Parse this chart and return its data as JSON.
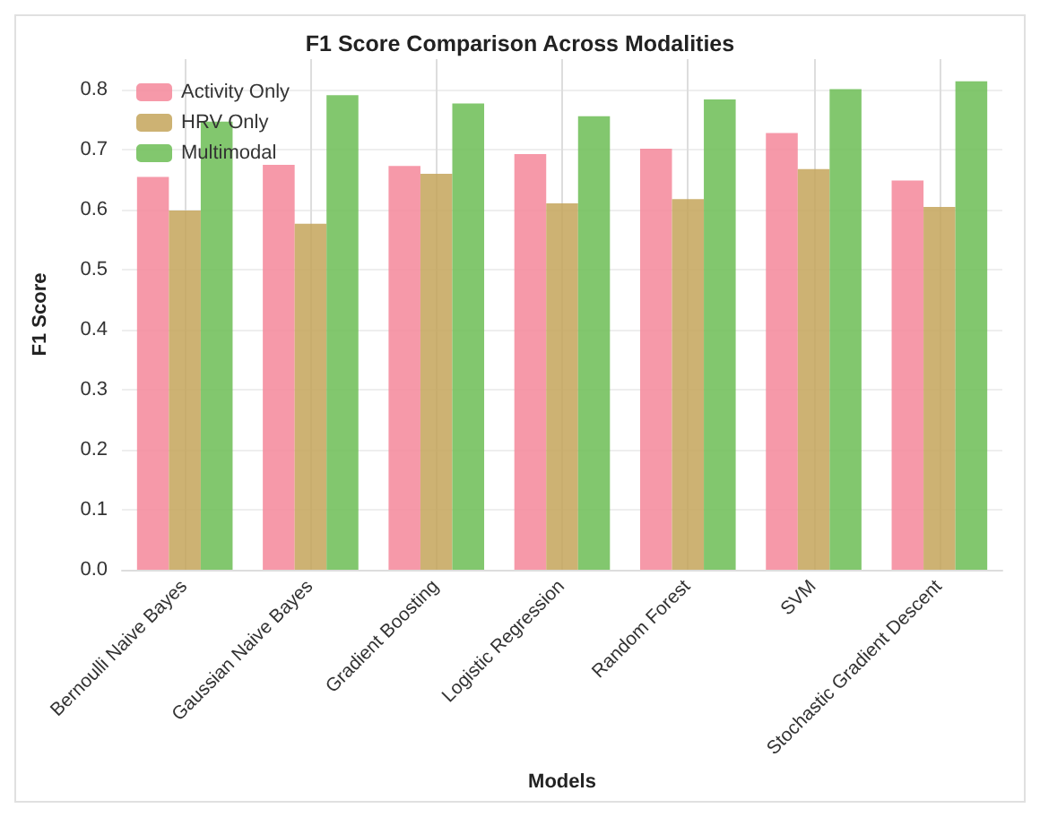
{
  "chart_data": {
    "type": "bar",
    "title": "F1 Score Comparison Across Modalities",
    "xlabel": "Models",
    "ylabel": "F1 Score",
    "categories": [
      "Bernoulli Naive Bayes",
      "Gaussian Naive Bayes",
      "Gradient Boosting",
      "Logistic Regression",
      "Random Forest",
      "SVM",
      "Stochastic Gradient Descent"
    ],
    "series": [
      {
        "name": "Activity Only",
        "color": "#f4879a",
        "values": [
          0.654,
          0.674,
          0.672,
          0.692,
          0.701,
          0.727,
          0.648
        ]
      },
      {
        "name": "HRV Only",
        "color": "#c4a55a",
        "values": [
          0.598,
          0.576,
          0.659,
          0.61,
          0.617,
          0.667,
          0.604
        ]
      },
      {
        "name": "Multimodal",
        "color": "#6cbd55",
        "values": [
          0.746,
          0.79,
          0.776,
          0.755,
          0.783,
          0.8,
          0.813
        ]
      }
    ],
    "ylim": [
      0,
      0.85
    ],
    "yticks": [
      {
        "value": 0,
        "label": "0.0"
      },
      0.1,
      0.2,
      0.3,
      0.4,
      0.5,
      0.6,
      0.7,
      0.8
    ],
    "grid": true,
    "legend": "top left"
  }
}
